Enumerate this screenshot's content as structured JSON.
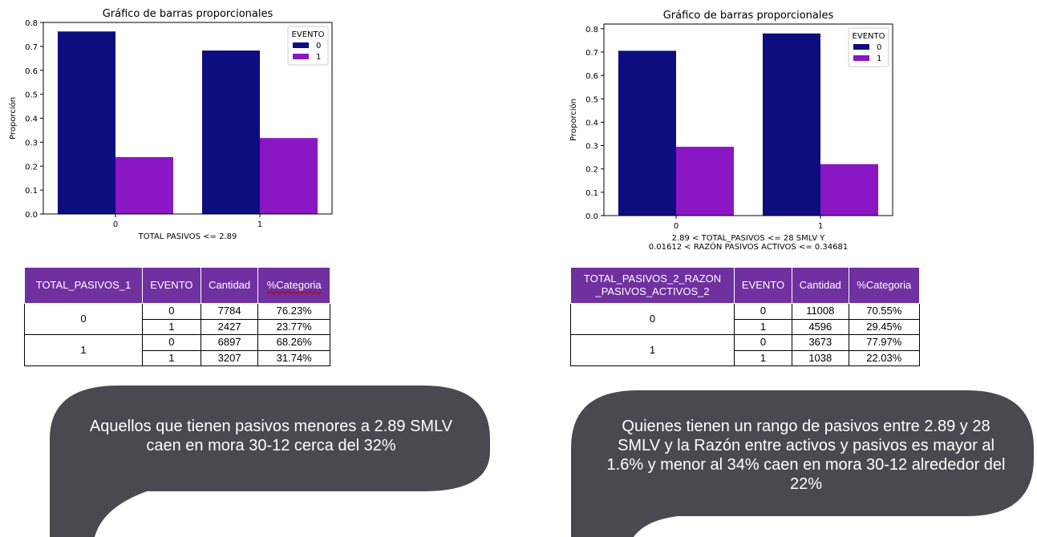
{
  "chart_data": [
    {
      "type": "bar",
      "title": "Gráfico de barras proporcionales",
      "xlabel": [
        "TOTAL PASIVOS <= 2.89"
      ],
      "ylabel": "Proporción",
      "categories": [
        "0",
        "1"
      ],
      "ylim": [
        0,
        0.8
      ],
      "yticks": [
        "0.0",
        "0.1",
        "0.2",
        "0.3",
        "0.4",
        "0.5",
        "0.6",
        "0.7",
        "0.8"
      ],
      "legend": {
        "title": "EVENTO",
        "position": "top-right"
      },
      "series": [
        {
          "name": "0",
          "color": "#0d0d80",
          "values": [
            0.7623,
            0.6826
          ]
        },
        {
          "name": "1",
          "color": "#8b16c4",
          "values": [
            0.2377,
            0.3174
          ]
        }
      ]
    },
    {
      "type": "bar",
      "title": "Gráfico de barras proporcionales",
      "xlabel": [
        "2.89 < TOTAL_PASIVOS <= 28 SMLV Y",
        "0.01612 < RAZÓN PASIVOS ACTIVOS <= 0.34681"
      ],
      "ylabel": "Proporción",
      "categories": [
        "0",
        "1"
      ],
      "ylim": [
        0,
        0.82
      ],
      "yticks": [
        "0.0",
        "0.1",
        "0.2",
        "0.3",
        "0.4",
        "0.5",
        "0.6",
        "0.7",
        "0.8"
      ],
      "legend": {
        "title": "EVENTO",
        "position": "top-right"
      },
      "series": [
        {
          "name": "0",
          "color": "#0d0d80",
          "values": [
            0.7055,
            0.7797
          ]
        },
        {
          "name": "1",
          "color": "#8b16c4",
          "values": [
            0.2945,
            0.2203
          ]
        }
      ]
    }
  ],
  "table1": {
    "headers": [
      "TOTAL_PASIVOS_1",
      "EVENTO",
      "Cantidad",
      "%Categoria"
    ],
    "rows": [
      {
        "group": "0",
        "evento": "0",
        "cantidad": "7784",
        "pct": "76.23%"
      },
      {
        "evento": "1",
        "cantidad": "2427",
        "pct": "23.77%"
      },
      {
        "group": "1",
        "evento": "0",
        "cantidad": "6897",
        "pct": "68.26%"
      },
      {
        "evento": "1",
        "cantidad": "3207",
        "pct": "31.74%"
      }
    ]
  },
  "table2": {
    "headers": [
      "TOTAL_PASIVOS_2_RAZON\n_PASIVOS_ACTIVOS_2",
      "EVENTO",
      "Cantidad",
      "%Categoria"
    ],
    "rows": [
      {
        "group": "0",
        "evento": "0",
        "cantidad": "11008",
        "pct": "70.55%"
      },
      {
        "evento": "1",
        "cantidad": "4596",
        "pct": "29.45%"
      },
      {
        "group": "1",
        "evento": "0",
        "cantidad": "3673",
        "pct": "77.97%"
      },
      {
        "evento": "1",
        "cantidad": "1038",
        "pct": "22.03%"
      }
    ]
  },
  "bubble1": {
    "text": "Aquellos que tienen pasivos menores a 2.89 SMLV caen en mora 30-12 cerca del 32%",
    "color": "#4a4950"
  },
  "bubble2": {
    "text": "Quienes tienen un rango de pasivos entre 2.89 y  28 SMLV y la Razón entre activos y pasivos es mayor al 1.6% y menor al 34% caen en mora 30-12 alrededor del 22%",
    "color": "#4a4950"
  }
}
